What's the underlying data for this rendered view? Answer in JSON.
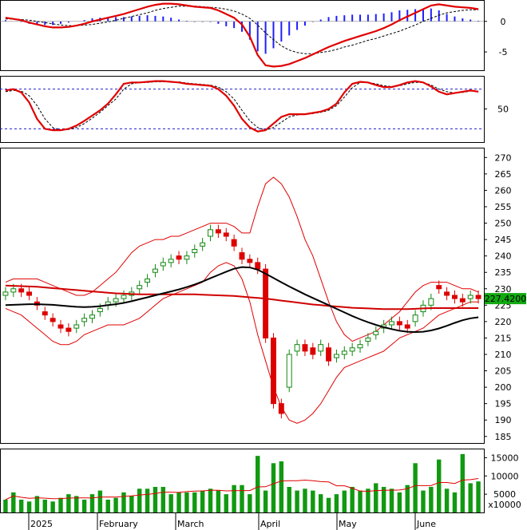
{
  "chart_data": {
    "type": "candlestick-stock",
    "x_labels": [
      "2025",
      "February",
      "March",
      "April",
      "May",
      "June"
    ],
    "panels": [
      {
        "id": "macd",
        "y_ticks": [
          0,
          -5
        ],
        "ylim": [
          -8,
          3.5
        ],
        "macd": [
          0.6,
          0.4,
          0.2,
          -0.2,
          -0.5,
          -0.8,
          -1.0,
          -1.0,
          -0.9,
          -0.7,
          -0.4,
          0.0,
          0.3,
          0.6,
          0.9,
          1.2,
          1.6,
          2.0,
          2.4,
          2.7,
          2.9,
          2.9,
          2.8,
          2.6,
          2.4,
          2.3,
          2.2,
          1.8,
          1.2,
          0.6,
          -0.5,
          -2.5,
          -5.5,
          -7.2,
          -7.4,
          -7.3,
          -7.0,
          -6.5,
          -6.0,
          -5.4,
          -4.8,
          -4.2,
          -3.7,
          -3.2,
          -2.8,
          -2.4,
          -2.0,
          -1.6,
          -1.1,
          -0.5,
          0.2,
          0.8,
          1.4,
          2.0,
          2.6,
          2.8,
          2.6,
          2.4,
          2.3,
          2.2,
          2.0
        ],
        "signal": [
          0.4,
          0.4,
          0.3,
          0.2,
          0.0,
          -0.2,
          -0.4,
          -0.6,
          -0.7,
          -0.7,
          -0.6,
          -0.5,
          -0.3,
          -0.1,
          0.2,
          0.5,
          0.8,
          1.1,
          1.4,
          1.8,
          2.1,
          2.3,
          2.5,
          2.5,
          2.5,
          2.4,
          2.3,
          2.2,
          2.0,
          1.7,
          1.2,
          0.5,
          -0.6,
          -1.9,
          -3.0,
          -4.0,
          -4.7,
          -5.1,
          -5.3,
          -5.3,
          -5.1,
          -4.9,
          -4.6,
          -4.2,
          -3.9,
          -3.5,
          -3.1,
          -2.8,
          -2.4,
          -2.0,
          -1.6,
          -1.1,
          -0.6,
          0.0,
          0.5,
          1.0,
          1.4,
          1.6,
          1.8,
          1.9,
          1.9
        ]
      },
      {
        "id": "stochastic",
        "y_ticks": [
          50
        ],
        "ylim": [
          0,
          100
        ],
        "overbought": 80,
        "oversold": 20,
        "k": [
          78,
          80,
          75,
          60,
          35,
          20,
          18,
          18,
          20,
          25,
          32,
          40,
          48,
          58,
          72,
          88,
          90,
          90,
          91,
          92,
          92,
          91,
          90,
          88,
          87,
          86,
          85,
          80,
          70,
          55,
          35,
          22,
          16,
          18,
          28,
          38,
          42,
          42,
          42,
          44,
          46,
          50,
          58,
          75,
          88,
          91,
          90,
          86,
          83,
          83,
          86,
          90,
          92,
          90,
          84,
          76,
          72,
          74,
          76,
          78,
          76
        ],
        "d": [
          76,
          78,
          77,
          70,
          55,
          35,
          22,
          18,
          19,
          22,
          28,
          36,
          45,
          55,
          65,
          80,
          88,
          90,
          90,
          91,
          91,
          91,
          91,
          89,
          88,
          87,
          86,
          83,
          76,
          65,
          48,
          32,
          22,
          18,
          22,
          30,
          38,
          41,
          42,
          43,
          45,
          48,
          55,
          68,
          82,
          90,
          90,
          88,
          85,
          84,
          85,
          88,
          90,
          90,
          86,
          80,
          76,
          74,
          75,
          77,
          77
        ]
      },
      {
        "id": "price",
        "y_ticks": [
          185,
          190,
          195,
          200,
          205,
          210,
          215,
          220,
          225,
          230,
          235,
          240,
          245,
          250,
          255,
          260,
          265,
          270
        ],
        "ylim": [
          183,
          273
        ],
        "last_price_label": "227.4200",
        "close": [
          229,
          230,
          229,
          228,
          225,
          222,
          220,
          218,
          217,
          219,
          221,
          222,
          224,
          226,
          227,
          228,
          229,
          231,
          233,
          236,
          238,
          239,
          239,
          240,
          242,
          244,
          248,
          247,
          246,
          243,
          239,
          238,
          236,
          215,
          195,
          192,
          210,
          213,
          211,
          210,
          213,
          208,
          210,
          211,
          212,
          213,
          215,
          217,
          219,
          220,
          219,
          218,
          222,
          225,
          227,
          230,
          228,
          227,
          226,
          228,
          227
        ],
        "open": [
          228,
          229,
          230,
          229,
          226,
          223,
          221,
          219,
          218,
          218,
          220,
          221,
          223,
          225,
          226,
          227,
          228,
          230,
          232,
          235,
          237,
          238,
          240,
          239,
          241,
          243,
          246,
          248,
          247,
          245,
          241,
          239,
          238,
          236,
          215,
          195,
          200,
          211,
          213,
          212,
          211,
          212,
          209,
          210,
          211,
          212,
          214,
          216,
          218,
          219,
          220,
          219,
          220,
          223,
          225,
          231,
          229,
          228,
          227,
          227,
          228
        ],
        "ma_red": [
          231,
          230.9,
          230.8,
          230.7,
          230.6,
          230.4,
          230.2,
          230,
          229.8,
          229.6,
          229.4,
          229.2,
          229,
          228.8,
          228.6,
          228.5,
          228.4,
          228.3,
          228.3,
          228.3,
          228.3,
          228.3,
          228.3,
          228.3,
          228.3,
          228.2,
          228.1,
          228,
          227.9,
          227.8,
          227.6,
          227.4,
          227.2,
          227,
          226.7,
          226.4,
          226.1,
          225.8,
          225.5,
          225.2,
          225,
          224.8,
          224.6,
          224.4,
          224.2,
          224.1,
          224,
          223.9,
          223.8,
          223.8,
          223.8,
          223.8,
          223.9,
          224,
          224.1,
          224.1,
          224.1,
          224.1,
          224.1,
          224.1,
          224.1
        ],
        "ma_black": [
          225,
          225.1,
          225.2,
          225.3,
          225.3,
          225.2,
          225.1,
          224.9,
          224.7,
          224.5,
          224.4,
          224.5,
          224.7,
          225,
          225.3,
          225.7,
          226.2,
          226.8,
          227.4,
          228,
          228.6,
          229.2,
          229.8,
          230.5,
          231.3,
          232.2,
          233.2,
          234.2,
          235.2,
          236.1,
          236.6,
          236.5,
          235.8,
          234.6,
          233.3,
          232,
          230.7,
          229.5,
          228.3,
          227.2,
          226.1,
          225,
          223.9,
          222.8,
          221.7,
          220.7,
          219.8,
          219,
          218.3,
          217.7,
          217.2,
          216.9,
          216.8,
          216.9,
          217.3,
          217.9,
          218.7,
          219.6,
          220.4,
          221,
          221.3
        ],
        "bb_upper": [
          232,
          233,
          233,
          233,
          233,
          232,
          231,
          230,
          229,
          228,
          228,
          229,
          231,
          233,
          235,
          238,
          241,
          243,
          244,
          245,
          245,
          246,
          246,
          247,
          248,
          249,
          250,
          250,
          250,
          249,
          247,
          247,
          255,
          262,
          264,
          262,
          258,
          252,
          245,
          240,
          233,
          226,
          220,
          216,
          214,
          215,
          216,
          217,
          219,
          221,
          223,
          226,
          229,
          231,
          232,
          232,
          232,
          231,
          230,
          230,
          229
        ],
        "bb_lower": [
          224,
          223,
          222,
          220,
          218,
          216,
          214,
          213,
          213,
          214,
          216,
          217,
          218,
          219,
          219,
          219,
          220,
          221,
          223,
          225,
          227,
          228,
          229,
          230,
          231,
          232,
          235,
          237,
          238,
          237,
          233,
          226,
          216,
          208,
          200,
          194,
          190,
          189,
          190,
          192,
          195,
          199,
          203,
          206,
          207,
          208,
          209,
          210,
          211,
          213,
          215,
          216,
          217,
          218,
          220,
          222,
          223,
          224,
          225,
          226,
          226
        ]
      },
      {
        "id": "volume",
        "unit_label": "x10000",
        "y_ticks": [
          5000,
          10000,
          15000
        ],
        "ylim": [
          0,
          17500
        ],
        "volume": [
          3500,
          5500,
          3500,
          3000,
          4500,
          3500,
          3000,
          4000,
          5000,
          4500,
          3500,
          5000,
          6000,
          3500,
          4000,
          5500,
          4500,
          6500,
          6500,
          7000,
          7000,
          5000,
          5500,
          5500,
          5500,
          6000,
          6500,
          6000,
          5000,
          7500,
          7500,
          5000,
          15500,
          6000,
          13500,
          14000,
          7000,
          6000,
          6500,
          6000,
          5000,
          4000,
          5000,
          6000,
          7000,
          6000,
          6500,
          8000,
          7000,
          6500,
          5500,
          7500,
          13500,
          6000,
          7000,
          14500,
          6500,
          5500,
          16000,
          8000,
          8500
        ]
      }
    ]
  }
}
